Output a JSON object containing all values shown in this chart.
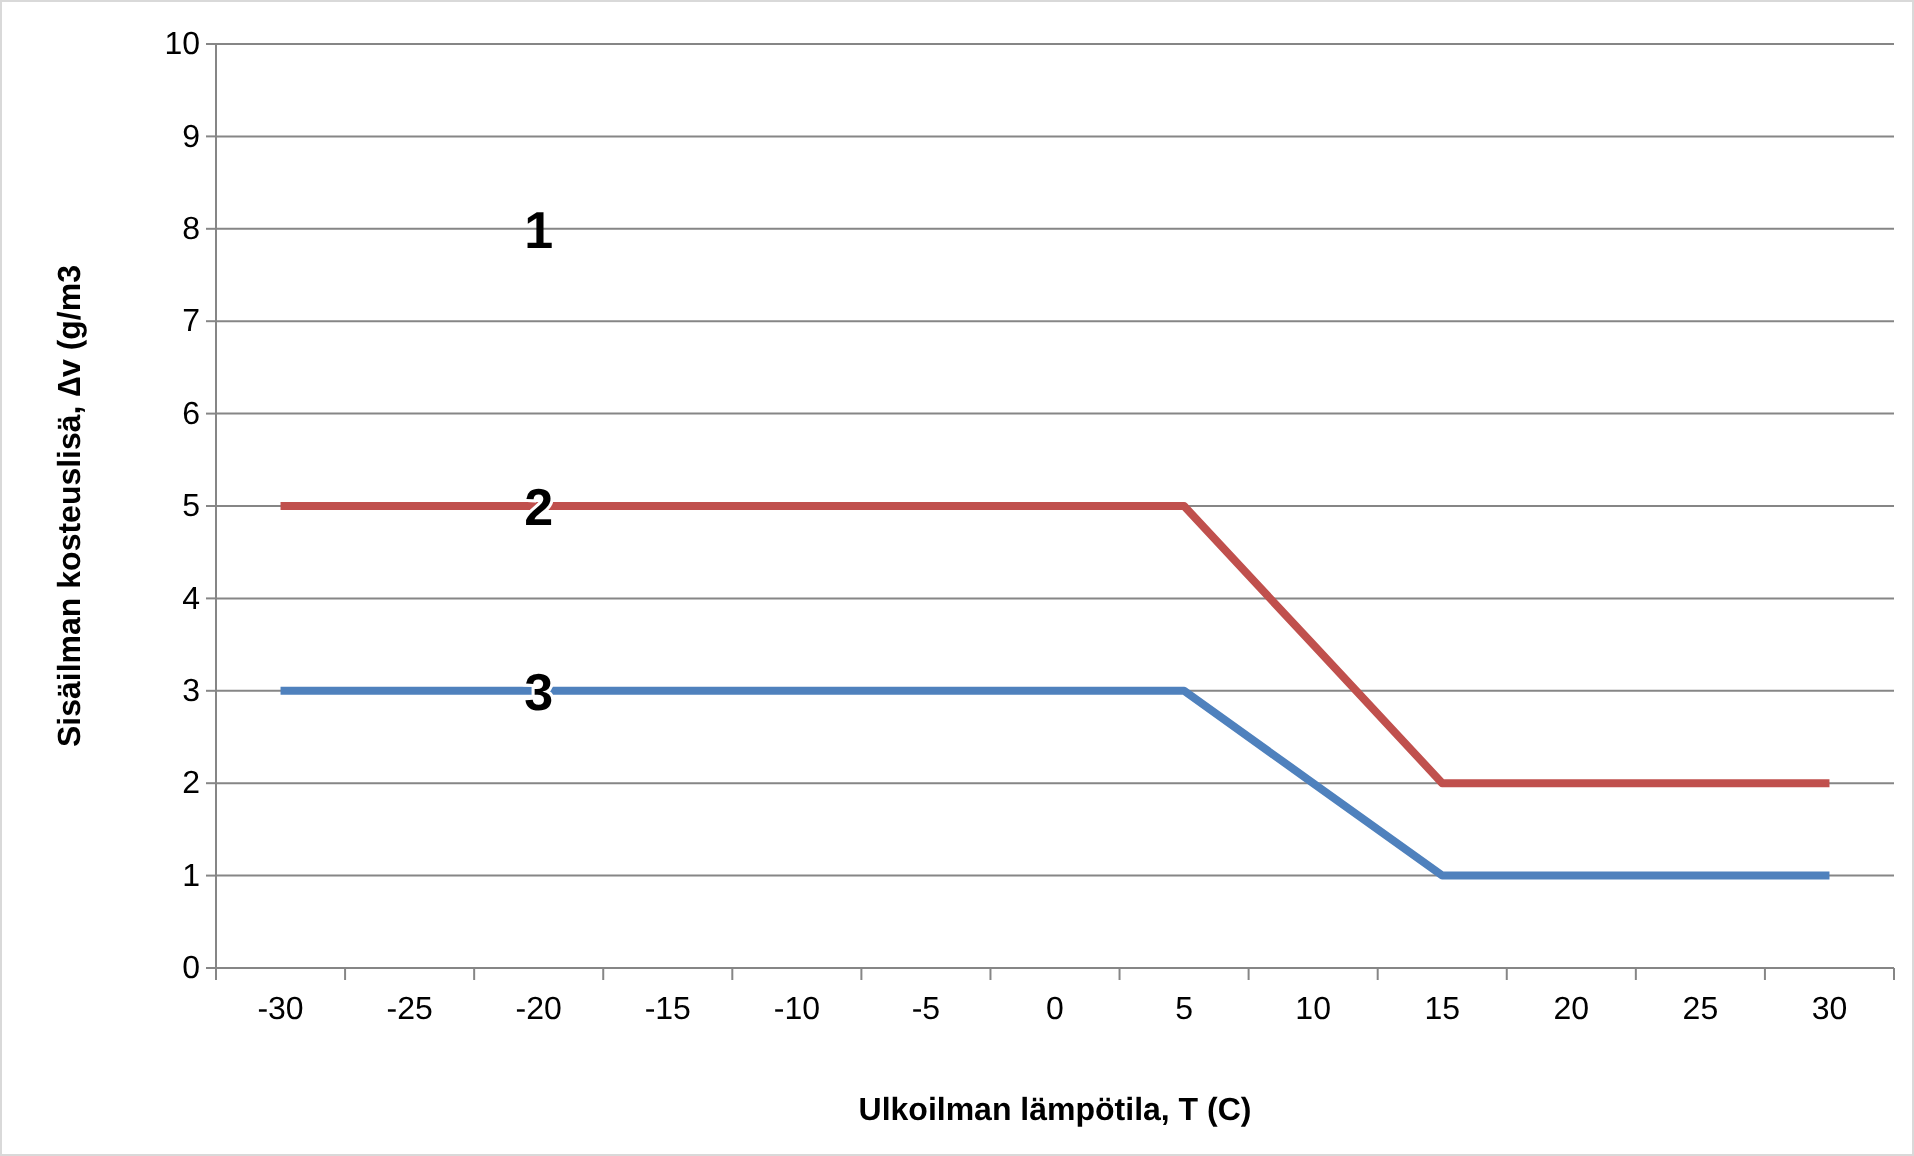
{
  "chart_data": {
    "type": "line",
    "xlabel": "Ulkoilman lämpötila, T (C)",
    "ylabel": "Sisäilman kosteuslisä, ∆v (g/m3",
    "categories": [
      "-30",
      "-25",
      "-20",
      "-15",
      "-10",
      "-5",
      "0",
      "5",
      "10",
      "15",
      "20",
      "25",
      "30"
    ],
    "series": [
      {
        "color": "#c0504d",
        "values": [
          5,
          5,
          5,
          5,
          5,
          5,
          5,
          5,
          3.5,
          2,
          2,
          2,
          2
        ]
      },
      {
        "color": "#4f81bd",
        "values": [
          3,
          3,
          3,
          3,
          3,
          3,
          3,
          3,
          2,
          1,
          1,
          1,
          1
        ]
      }
    ],
    "ylim": [
      0,
      10
    ],
    "yticks": [
      0,
      1,
      2,
      3,
      4,
      5,
      6,
      7,
      8,
      9,
      10
    ],
    "grid": "y",
    "marker": "none",
    "line_style": "solid",
    "annotations": [
      "1",
      {
        "text": "2",
        "x": "-20",
        "y": 5
      },
      {
        "text": "3",
        "x": "-20",
        "y": 3
      }
    ]
  }
}
